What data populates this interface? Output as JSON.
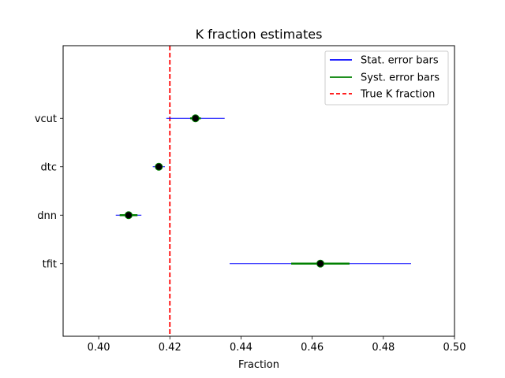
{
  "chart_data": {
    "type": "scatter",
    "title": "K fraction estimates",
    "xlabel": "Fraction",
    "ylabel": "",
    "xlim": [
      0.39,
      0.5
    ],
    "xticks": [
      "0.40",
      "0.42",
      "0.44",
      "0.46",
      "0.48",
      "0.50"
    ],
    "xtick_values": [
      0.4,
      0.42,
      0.44,
      0.46,
      0.48,
      0.5
    ],
    "categories": [
      "vcut",
      "dtc",
      "dnn",
      "tfit"
    ],
    "points": [
      {
        "label": "vcut",
        "value": 0.4272,
        "stat_err": 0.0082,
        "syst_err": 0.0015
      },
      {
        "label": "dtc",
        "value": 0.4169,
        "stat_err": 0.0017,
        "syst_err": 0.0008
      },
      {
        "label": "dnn",
        "value": 0.4084,
        "stat_err": 0.0036,
        "syst_err": 0.0025
      },
      {
        "label": "tfit",
        "value": 0.4623,
        "stat_err": 0.0255,
        "syst_err": 0.0082
      }
    ],
    "true_value": 0.42,
    "legend": {
      "position": "upper right",
      "entries": [
        {
          "label": "Stat. error bars",
          "color": "#0000ff",
          "style": "solid"
        },
        {
          "label": "Syst. error bars",
          "color": "#008000",
          "style": "solid"
        },
        {
          "label": "True K fraction",
          "color": "#ff0000",
          "style": "dashed"
        }
      ]
    },
    "colors": {
      "stat": "#0000ff",
      "syst": "#008000",
      "true_line": "#ff0000",
      "marker": "#000000",
      "marker_edge": "#008000"
    },
    "grid": false
  }
}
